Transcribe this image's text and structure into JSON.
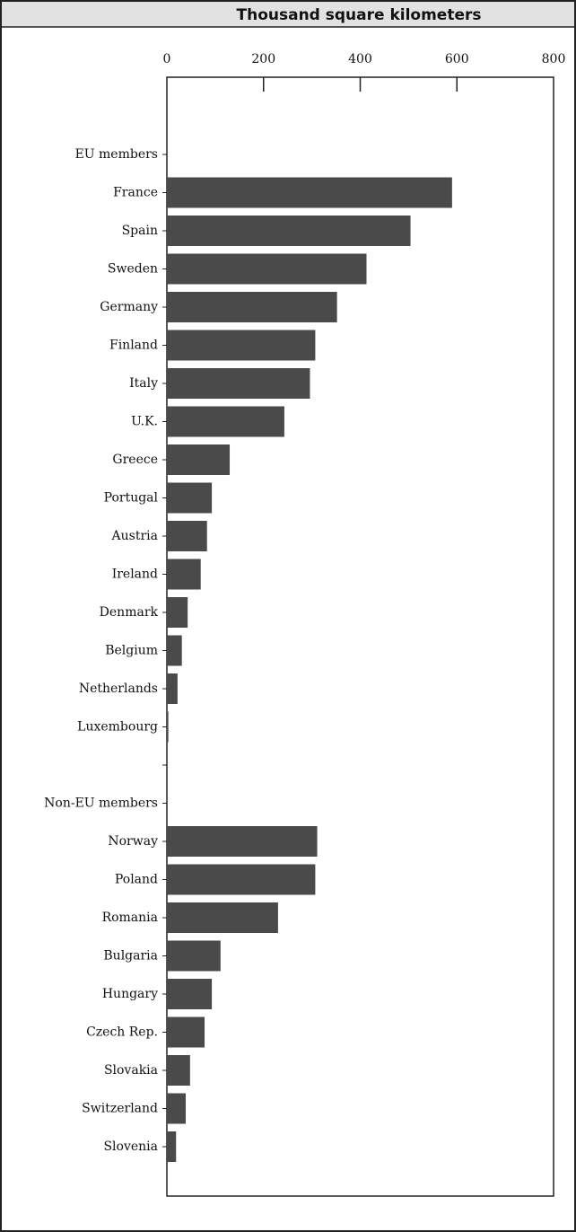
{
  "chart_data": {
    "type": "barh",
    "title": "Thousand square kilometers",
    "categories": [
      "EU members",
      "France",
      "Spain",
      "Sweden",
      "Germany",
      "Finland",
      "Italy",
      "U.K.",
      "Greece",
      "Portugal",
      "Austria",
      "Ireland",
      "Denmark",
      "Belgium",
      "Netherlands",
      "Luxembourg",
      null,
      "Non-EU members",
      "Norway",
      "Poland",
      "Romania",
      "Bulgaria",
      "Hungary",
      "Czech Rep.",
      "Slovakia",
      "Switzerland",
      "Slovenia"
    ],
    "values": [
      null,
      590,
      504,
      413,
      352,
      307,
      296,
      243,
      130,
      93,
      83,
      70,
      43,
      31,
      22,
      3,
      null,
      null,
      311,
      307,
      230,
      111,
      93,
      78,
      48,
      39,
      19
    ],
    "color": "#4a4a4a",
    "xlim": [
      0,
      800
    ],
    "xticks": [
      0,
      200,
      400,
      600,
      800
    ]
  }
}
